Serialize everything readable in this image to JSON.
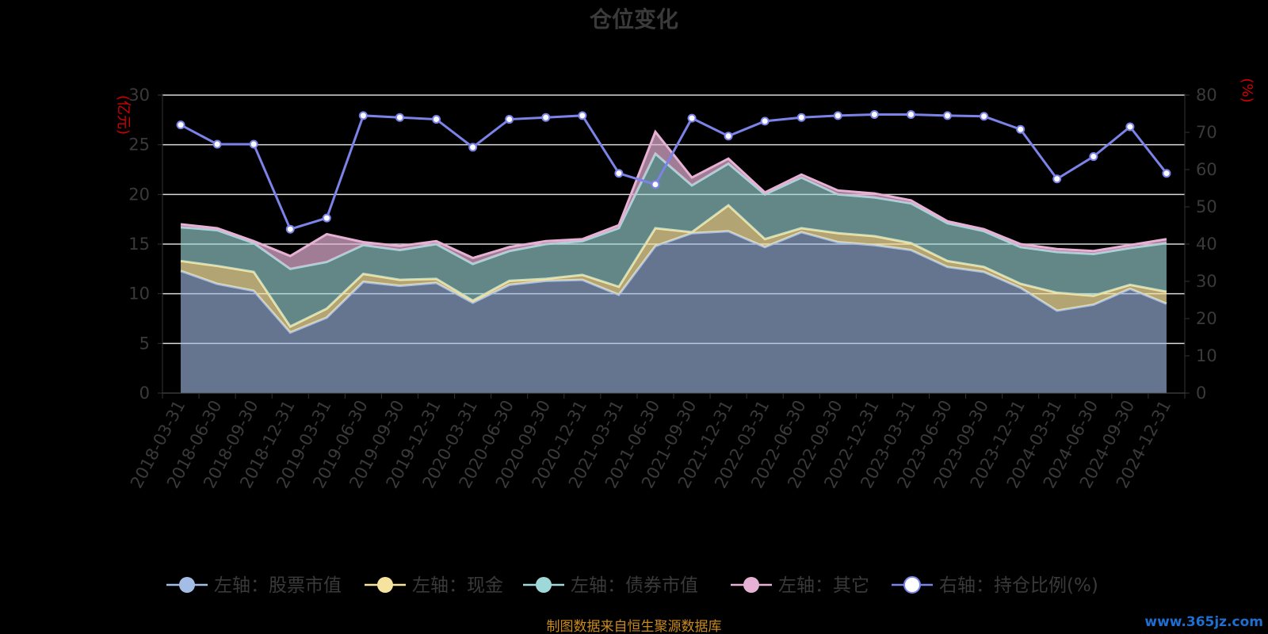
{
  "chart_data": {
    "type": "area",
    "title": "仓位变化",
    "left_axis": {
      "unit_label": "(亿元)",
      "range": [
        0,
        30
      ],
      "ticks": [
        "0",
        "5",
        "10",
        "15",
        "20",
        "25",
        "30"
      ]
    },
    "right_axis": {
      "unit_label": "(%)",
      "range": [
        0,
        80
      ],
      "ticks": [
        "0",
        "10",
        "20",
        "30",
        "40",
        "50",
        "60",
        "70",
        "80"
      ]
    },
    "categories": [
      "2018-03-31",
      "2018-06-30",
      "2018-09-30",
      "2018-12-31",
      "2019-03-31",
      "2019-06-30",
      "2019-09-30",
      "2019-12-31",
      "2020-03-31",
      "2020-06-30",
      "2020-09-30",
      "2020-12-31",
      "2021-03-31",
      "2021-06-30",
      "2021-09-30",
      "2021-12-31",
      "2022-03-31",
      "2022-06-30",
      "2022-09-30",
      "2022-12-31",
      "2023-03-31",
      "2023-06-30",
      "2023-09-30",
      "2023-12-31",
      "2024-03-31",
      "2024-06-30",
      "2024-09-30",
      "2024-12-31"
    ],
    "stacked": true,
    "series": [
      {
        "name": "左轴：股票市值",
        "axis": "left",
        "color": "#a4bde6",
        "values": [
          12.3,
          11.0,
          10.3,
          6.1,
          7.6,
          11.2,
          10.8,
          11.1,
          9.1,
          10.9,
          11.3,
          11.4,
          9.9,
          14.8,
          16.1,
          16.3,
          14.7,
          16.2,
          15.2,
          14.9,
          14.4,
          12.7,
          12.2,
          10.6,
          8.3,
          8.9,
          10.5,
          9.0
        ]
      },
      {
        "name": "左轴：现金",
        "axis": "left",
        "color": "#f7e3a0",
        "values": [
          1.0,
          1.8,
          1.9,
          0.6,
          0.9,
          0.8,
          0.6,
          0.4,
          0.2,
          0.4,
          0.2,
          0.5,
          0.8,
          1.8,
          0.1,
          2.6,
          0.8,
          0.4,
          0.9,
          0.9,
          0.7,
          0.6,
          0.5,
          0.4,
          1.8,
          0.9,
          0.4,
          1.2
        ]
      },
      {
        "name": "左轴：债券市值",
        "axis": "left",
        "color": "#9fd8d8",
        "values": [
          3.4,
          3.6,
          2.9,
          5.8,
          4.7,
          2.9,
          3.0,
          3.5,
          3.7,
          3.0,
          3.5,
          3.4,
          5.9,
          7.5,
          4.7,
          4.2,
          4.5,
          5.1,
          3.9,
          3.9,
          4.0,
          3.8,
          3.6,
          3.7,
          4.1,
          4.2,
          3.7,
          4.9
        ]
      },
      {
        "name": "左轴：其它",
        "axis": "left",
        "color": "#e6b1d4",
        "values": [
          0.3,
          0.2,
          0.2,
          1.3,
          2.8,
          0.3,
          0.4,
          0.3,
          0.6,
          0.4,
          0.3,
          0.2,
          0.3,
          2.2,
          0.8,
          0.5,
          0.2,
          0.3,
          0.4,
          0.4,
          0.3,
          0.2,
          0.2,
          0.3,
          0.3,
          0.3,
          0.3,
          0.4
        ]
      },
      {
        "name": "右轴：持仓比例(%)",
        "axis": "right",
        "type": "line",
        "color": "#7b83e8",
        "values": [
          72,
          66.8,
          66.8,
          44,
          47,
          74.5,
          74,
          73.5,
          66,
          73.5,
          74,
          74.5,
          59,
          56,
          73.8,
          69,
          73,
          74,
          74.5,
          74.8,
          74.8,
          74.5,
          74.3,
          70.8,
          57.5,
          63.5,
          71.5,
          59
        ]
      }
    ],
    "legend_position": "bottom",
    "grid": true,
    "source_text": "制图数据来自恒生聚源数据库",
    "watermark": "www.365jz.com"
  }
}
